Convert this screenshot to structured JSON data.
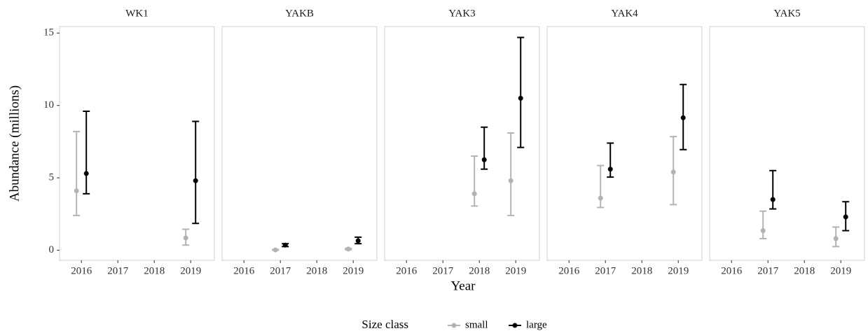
{
  "chart_data": {
    "type": "errorbar",
    "ylabel": "Abundance (millions)",
    "xlabel": "Year",
    "legend_title": "Size class",
    "series": [
      {
        "name": "small",
        "color": "#b3b3b3"
      },
      {
        "name": "large",
        "color": "#000000"
      }
    ],
    "xlim": [
      2015.4,
      2019.65
    ],
    "xticks": [
      2016,
      2017,
      2018,
      2019
    ],
    "ylim": [
      -0.7,
      15.45
    ],
    "yticks": [
      0,
      5,
      10,
      15
    ],
    "grid": false,
    "panels": [
      {
        "title": "WK1",
        "series": [
          {
            "x": [
              2016,
              2019
            ],
            "values": [
              4.1,
              0.85
            ],
            "lower": [
              2.4,
              0.35
            ],
            "upper": [
              8.2,
              1.45
            ]
          },
          {
            "x": [
              2016,
              2019
            ],
            "values": [
              5.3,
              4.8
            ],
            "lower": [
              3.9,
              1.85
            ],
            "upper": [
              9.6,
              8.9
            ]
          }
        ]
      },
      {
        "title": "YAKB",
        "series": [
          {
            "x": [
              2017,
              2019
            ],
            "values": [
              0.02,
              0.08
            ],
            "lower": [
              0,
              0.04
            ],
            "upper": [
              0.05,
              0.12
            ]
          },
          {
            "x": [
              2017,
              2019
            ],
            "values": [
              0.35,
              0.65
            ],
            "lower": [
              0.25,
              0.45
            ],
            "upper": [
              0.45,
              0.9
            ]
          }
        ]
      },
      {
        "title": "YAK3",
        "series": [
          {
            "x": [
              2018,
              2019
            ],
            "values": [
              3.9,
              4.8
            ],
            "lower": [
              3.05,
              2.4
            ],
            "upper": [
              6.5,
              8.1
            ]
          },
          {
            "x": [
              2018,
              2019
            ],
            "values": [
              6.25,
              10.5
            ],
            "lower": [
              5.6,
              7.1
            ],
            "upper": [
              8.5,
              14.7
            ]
          }
        ]
      },
      {
        "title": "YAK4",
        "series": [
          {
            "x": [
              2017,
              2019
            ],
            "values": [
              3.6,
              5.4
            ],
            "lower": [
              2.95,
              3.15
            ],
            "upper": [
              5.85,
              7.85
            ]
          },
          {
            "x": [
              2017,
              2019
            ],
            "values": [
              5.6,
              9.15
            ],
            "lower": [
              5.05,
              6.95
            ],
            "upper": [
              7.4,
              11.45
            ]
          }
        ]
      },
      {
        "title": "YAK5",
        "series": [
          {
            "x": [
              2017,
              2019
            ],
            "values": [
              1.35,
              0.8
            ],
            "lower": [
              0.8,
              0.25
            ],
            "upper": [
              2.7,
              1.6
            ]
          },
          {
            "x": [
              2017,
              2019
            ],
            "values": [
              3.5,
              2.3
            ],
            "lower": [
              2.85,
              1.35
            ],
            "upper": [
              5.5,
              3.35
            ]
          }
        ]
      }
    ]
  }
}
